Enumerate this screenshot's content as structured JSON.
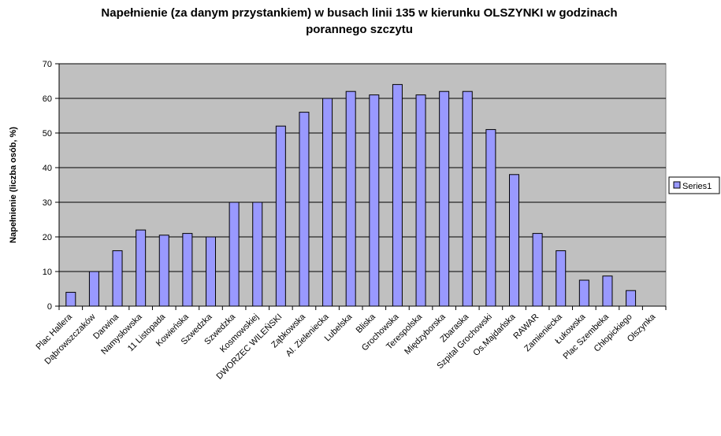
{
  "chart_data": {
    "type": "bar",
    "title_lines": [
      "Napełnienie (za danym przystankiem) w busach linii 135 w kierunku OLSZYNKI w godzinach",
      "porannego szczytu"
    ],
    "ylabel": "Napełnienie (liczba osób, %)",
    "xlabel": "",
    "ylim": [
      0,
      70
    ],
    "yticks": [
      0,
      10,
      20,
      30,
      40,
      50,
      60,
      70
    ],
    "grid": true,
    "legend_position": "right",
    "categories": [
      "Plac Hallera",
      "Dąbrowszczaków",
      "Darwina",
      "Namysłowska",
      "11 Listopada",
      "Kowieńska",
      "Szwedzka",
      "Szwedzka",
      "Kosmowskiej",
      "DWORZEC WILEŃSKI",
      "Ząbkowska",
      "Al. Zieleniecka",
      "Lubelska",
      "Bliska",
      "Grochowska",
      "Terespolska",
      "Międzyborska",
      "Zbaraska",
      "Szpital Grochowski",
      "Os.Majdańska",
      "RAWAR",
      "Zamieniecka",
      "Łukowska",
      "Plac Szembeka",
      "Chłopickiego",
      "Olszynka"
    ],
    "series": [
      {
        "name": "Series1",
        "values": [
          4,
          10,
          16,
          22,
          20.5,
          21,
          20,
          30,
          30,
          52,
          56,
          60,
          62,
          61,
          64,
          61,
          62,
          62,
          51,
          38,
          21,
          16,
          7.5,
          8.7,
          4.5,
          0
        ]
      }
    ],
    "colors": {
      "plot_background": "#c0c0c0",
      "bar_fill": "#9999ff",
      "bar_stroke": "#000000",
      "gridline": "#000000"
    }
  }
}
